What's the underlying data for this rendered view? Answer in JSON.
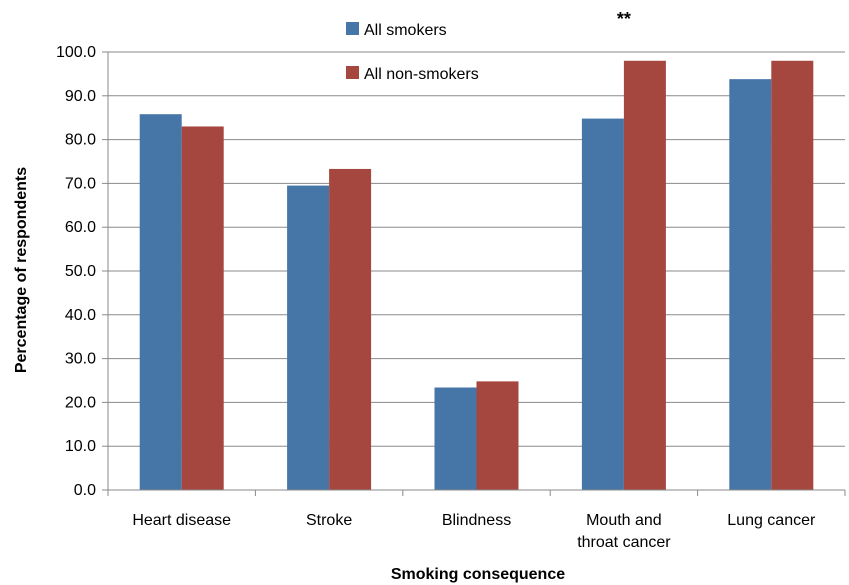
{
  "chart_data": {
    "type": "bar",
    "title": "",
    "xlabel": "Smoking consequence",
    "ylabel": "Percentage of respondents",
    "ylim": [
      0,
      100
    ],
    "yticks": [
      "0.0",
      "10.0",
      "20.0",
      "30.0",
      "40.0",
      "50.0",
      "60.0",
      "70.0",
      "80.0",
      "90.0",
      "100.0"
    ],
    "categories": [
      "Heart disease",
      "Stroke",
      "Blindness",
      "Mouth and throat cancer",
      "Lung cancer"
    ],
    "category_lines": [
      [
        "Heart disease"
      ],
      [
        "Stroke"
      ],
      [
        "Blindness"
      ],
      [
        "Mouth and",
        "throat cancer"
      ],
      [
        "Lung cancer"
      ]
    ],
    "series": [
      {
        "name": "All smokers",
        "values": [
          85.8,
          69.5,
          23.4,
          84.8,
          93.8
        ],
        "color": "#4675A7"
      },
      {
        "name": "All non-smokers",
        "values": [
          83.0,
          73.3,
          24.8,
          98.0,
          98.0
        ],
        "color": "#A6473F"
      }
    ],
    "annotations": [
      {
        "text": "**",
        "category": "Mouth and throat cancer"
      }
    ],
    "grid": true,
    "legend": "top-center"
  }
}
